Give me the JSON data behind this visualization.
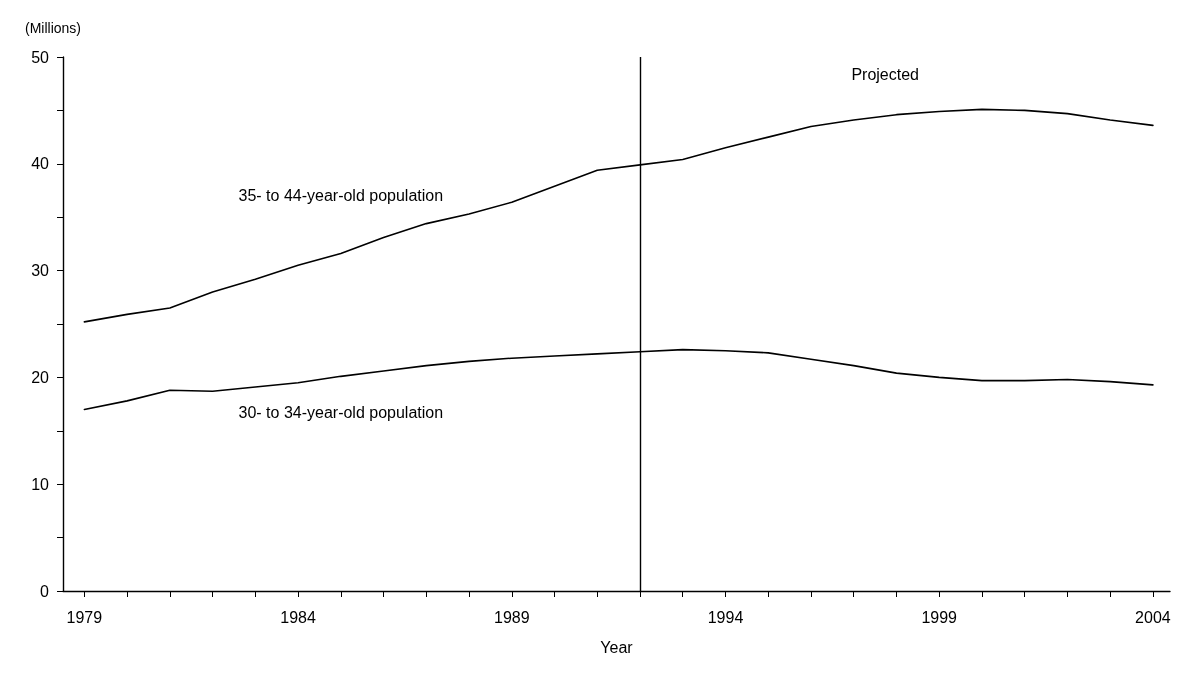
{
  "chart_data": {
    "type": "line",
    "xlabel": "Year",
    "ylabel": "(Millions)",
    "x": [
      1979,
      1980,
      1981,
      1982,
      1983,
      1984,
      1985,
      1986,
      1987,
      1988,
      1989,
      1990,
      1991,
      1992,
      1993,
      1994,
      1995,
      1996,
      1997,
      1998,
      1999,
      2000,
      2001,
      2002,
      2003,
      2004
    ],
    "series": [
      {
        "name": "35- to 44-year-old population",
        "color": "#000000",
        "values": [
          25.2,
          25.9,
          26.5,
          28.0,
          29.2,
          30.5,
          31.6,
          33.1,
          34.4,
          35.3,
          36.4,
          37.9,
          39.4,
          39.9,
          40.4,
          41.5,
          42.5,
          43.5,
          44.1,
          44.6,
          44.9,
          45.1,
          45.0,
          44.7,
          44.1,
          43.6
        ]
      },
      {
        "name": "30- to 34-year-old population",
        "color": "#000000",
        "values": [
          17.0,
          17.8,
          18.8,
          18.7,
          19.1,
          19.5,
          20.1,
          20.6,
          21.1,
          21.5,
          21.8,
          22.0,
          22.2,
          22.4,
          22.6,
          22.5,
          22.3,
          21.7,
          21.1,
          20.4,
          20.0,
          19.7,
          19.7,
          19.8,
          19.6,
          19.3
        ]
      }
    ],
    "xlim": [
      1978.5,
      2004.4
    ],
    "xticks": [
      1979,
      {
        "value": 1980,
        "label": null
      },
      {
        "value": 1981,
        "label": null
      },
      {
        "value": 1982,
        "label": null
      },
      {
        "value": 1983,
        "label": null
      },
      1984,
      {
        "value": 1985,
        "label": null
      },
      {
        "value": 1986,
        "label": null
      },
      {
        "value": 1987,
        "label": null
      },
      {
        "value": 1988,
        "label": null
      },
      1989,
      {
        "value": 1990,
        "label": null
      },
      {
        "value": 1991,
        "label": null
      },
      {
        "value": 1992,
        "label": null
      },
      {
        "value": 1993,
        "label": null
      },
      1994,
      {
        "value": 1995,
        "label": null
      },
      {
        "value": 1996,
        "label": null
      },
      {
        "value": 1997,
        "label": null
      },
      {
        "value": 1998,
        "label": null
      },
      1999,
      {
        "value": 2000,
        "label": null
      },
      {
        "value": 2001,
        "label": null
      },
      {
        "value": 2002,
        "label": null
      },
      {
        "value": 2003,
        "label": null
      },
      2004
    ],
    "ylim": [
      0,
      50
    ],
    "yticks": [
      0,
      {
        "value": 5,
        "label": null
      },
      10,
      {
        "value": 15,
        "label": null
      },
      20,
      {
        "value": 25,
        "label": null
      },
      30,
      {
        "value": 35,
        "label": null
      },
      40,
      {
        "value": 45,
        "label": null
      },
      50
    ],
    "ref_lines": [
      {
        "axis": "x",
        "value": 1992,
        "color": "#000000"
      }
    ],
    "annotations": [
      "Projected"
    ],
    "grid": false,
    "legend": false,
    "marker": "none",
    "line_style": "solid"
  }
}
